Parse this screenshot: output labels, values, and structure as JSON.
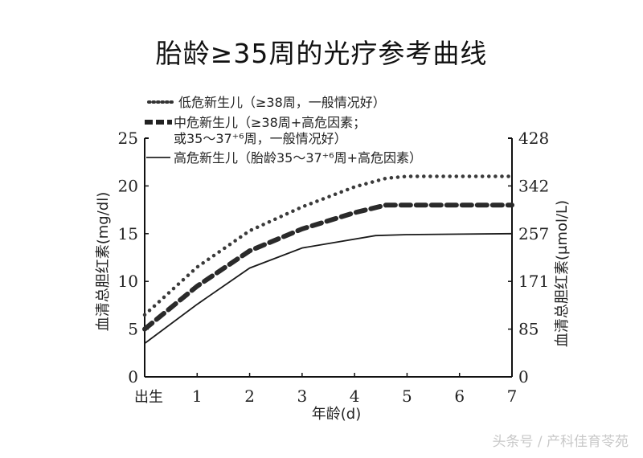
{
  "page": {
    "title": "胎龄≥35周的光疗参考曲线",
    "watermark": "头条号 / 产科佳育苓苑"
  },
  "chart_data": {
    "type": "line",
    "title": "胎龄≥35周的光疗参考曲线",
    "xlabel": "年龄(d)",
    "ylabel": "血清总胆红素(mg/dl)",
    "ylabel_right": "血清总胆红素(μmol/L)",
    "x_ticks": [
      "出生",
      "1",
      "2",
      "3",
      "4",
      "5",
      "6",
      "7"
    ],
    "y_ticks": [
      0,
      5,
      10,
      15,
      20,
      25
    ],
    "y_ticks_right": [
      0,
      85,
      171,
      257,
      342,
      428
    ],
    "xlim": [
      0,
      7
    ],
    "ylim": [
      0,
      25
    ],
    "grid": false,
    "legend_position": "top-left",
    "series": [
      {
        "name": "低危新生儿（≥38周，一般情况好）",
        "style": "dotted",
        "x": [
          0,
          1,
          2,
          3,
          4,
          4.6,
          5,
          6,
          7
        ],
        "values": [
          6.5,
          11.5,
          15.3,
          17.8,
          19.9,
          20.8,
          21,
          21,
          21
        ]
      },
      {
        "name": "中危新生儿（≥38周+高危因素；或35～37+6周，一般情况好）",
        "style": "dashed",
        "x": [
          0,
          1,
          2,
          3,
          4,
          4.6,
          5,
          6,
          7
        ],
        "values": [
          5,
          9.5,
          13.2,
          15.5,
          17.2,
          18,
          18,
          18,
          18
        ]
      },
      {
        "name": "高危新生儿（胎龄35～37+6周+高危因素）",
        "style": "solid",
        "x": [
          0,
          1,
          2,
          3,
          4.4,
          5,
          6,
          7
        ],
        "values": [
          3.5,
          7.6,
          11.4,
          13.5,
          14.8,
          14.9,
          14.95,
          15
        ]
      }
    ]
  },
  "legend": {
    "line1": "低危新生儿（≥38周，一般情况好）",
    "line2": "中危新生儿（≥38周+高危因素；",
    "line3": "或35～37⁺⁶周，一般情况好）",
    "line4": "高危新生儿（胎龄35～37⁺⁶周+高危因素）"
  }
}
